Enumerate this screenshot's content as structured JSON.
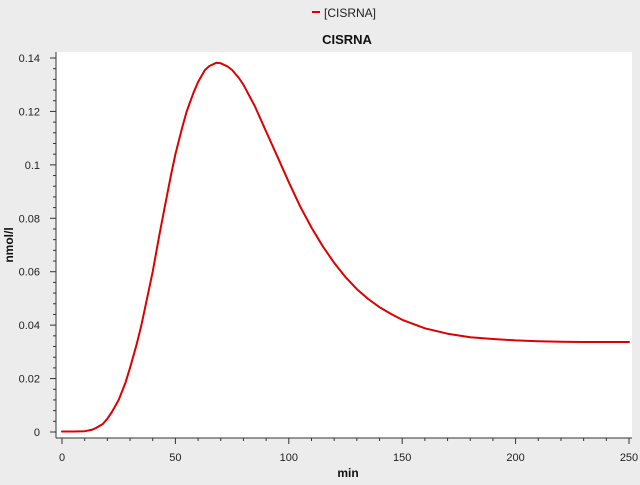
{
  "chart_data": {
    "type": "line",
    "title": "CISRNA",
    "xlabel": "min",
    "ylabel": "nmol/l",
    "xlim": [
      0,
      250
    ],
    "ylim": [
      0,
      0.14
    ],
    "x_ticks": [
      0,
      50,
      100,
      150,
      200,
      250
    ],
    "y_ticks": [
      0,
      0.02,
      0.04,
      0.06,
      0.08,
      0.1,
      0.12,
      0.14
    ],
    "grid": false,
    "legend_position": "top-center",
    "series": [
      {
        "name": "[CISRNA]",
        "color": "#dd0000",
        "x": [
          0,
          5,
          10,
          13,
          15,
          18,
          20,
          22,
          25,
          28,
          30,
          33,
          35,
          38,
          40,
          43,
          45,
          48,
          50,
          53,
          55,
          58,
          60,
          63,
          65,
          68,
          70,
          73,
          75,
          78,
          80,
          85,
          90,
          95,
          100,
          105,
          110,
          115,
          120,
          125,
          130,
          135,
          140,
          145,
          150,
          160,
          170,
          180,
          190,
          200,
          210,
          220,
          230,
          240,
          250
        ],
        "values": [
          0.0002,
          0.0002,
          0.0003,
          0.0008,
          0.0015,
          0.003,
          0.005,
          0.0075,
          0.012,
          0.0185,
          0.024,
          0.033,
          0.04,
          0.052,
          0.06,
          0.074,
          0.083,
          0.096,
          0.104,
          0.114,
          0.12,
          0.127,
          0.131,
          0.1355,
          0.137,
          0.1382,
          0.138,
          0.1368,
          0.1355,
          0.1325,
          0.13,
          0.122,
          0.1125,
          0.103,
          0.0935,
          0.0845,
          0.0765,
          0.0695,
          0.0633,
          0.058,
          0.0535,
          0.0498,
          0.0467,
          0.0442,
          0.042,
          0.0388,
          0.0368,
          0.0355,
          0.0348,
          0.0343,
          0.034,
          0.0338,
          0.0337,
          0.0337,
          0.0337
        ]
      }
    ]
  }
}
